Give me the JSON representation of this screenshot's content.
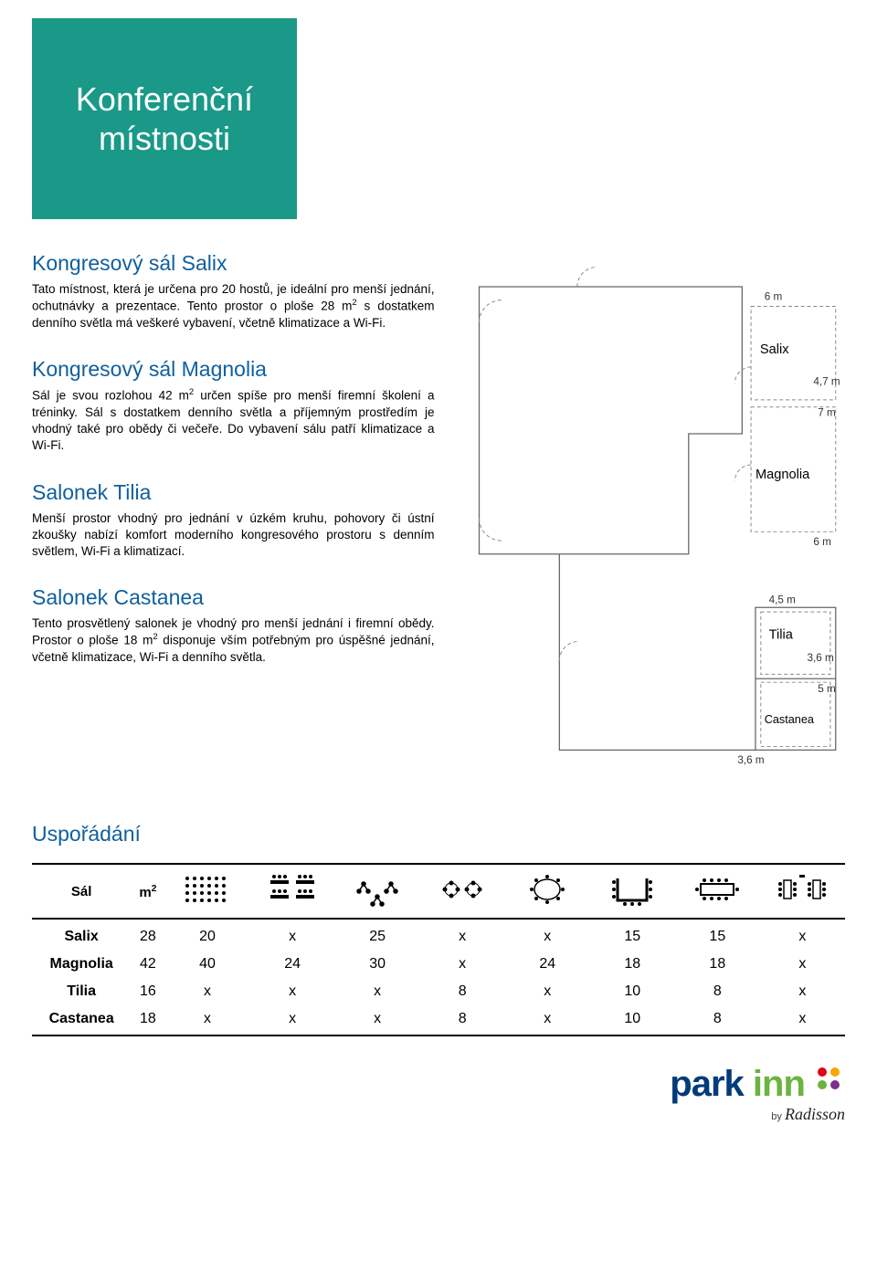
{
  "colors": {
    "title_tile_bg": "#1a9988",
    "accent_blue": "#0f5f9e",
    "logo_park": "#003b7a",
    "logo_inn": "#6cb33f",
    "logo_dot1": "#e2001a",
    "logo_dot2": "#f7a600",
    "logo_dot3": "#6cb33f",
    "logo_dot4": "#7b2e8c",
    "photo_conf_top": "#c9d0c6",
    "photo_conf_bottom": "#c7baa0",
    "photo_bar_top": "#3d7aa8",
    "photo_bar_bottom": "#b8b0a4"
  },
  "header": {
    "title": "Konferenční místnosti"
  },
  "sections": {
    "salix": {
      "title": "Kongresový sál Salix",
      "body": "Tato místnost, která je určena pro 20 hostů, je ideální pro menší jednání, ochutnávky a prezentace. Tento prostor o ploše 28 m² s dostatkem denního světla má veškeré vybavení, včetně klimatizace a Wi-Fi."
    },
    "magnolia": {
      "title": "Kongresový sál Magnolia",
      "body": "Sál je svou rozlohou 42 m² určen spíše pro menší firemní školení a tréninky. Sál s dostatkem denního světla a příjemným prostředím je vhodný také pro obědy či večeře. Do vybavení sálu patří klimatizace a Wi-Fi."
    },
    "tilia": {
      "title": "Salonek Tilia",
      "body": "Menší prostor vhodný pro jednání v úzkém kruhu, pohovory či ústní zkoušky nabízí komfort moderního kongresového prostoru s denním světlem, Wi-Fi a klimatizací."
    },
    "castanea": {
      "title": "Salonek Castanea",
      "body": "Tento prosvětlený salonek je vhodný pro menší jednání i firemní obědy. Prostor o ploše 18 m² disponuje vším potřebným pro úspěšné jednání, včetně klimatizace, Wi-Fi a denního světla."
    }
  },
  "floorplan": {
    "labels": {
      "salix": "Salix",
      "magnolia": "Magnolia",
      "tilia": "Tilia",
      "castanea": "Castanea"
    },
    "dims": {
      "d6m_top": "6 m",
      "d47m": "4,7 m",
      "d7m": "7 m",
      "d6m_mid": "6 m",
      "d45m": "4,5 m",
      "d36m_r": "3,6 m",
      "d5m": "5 m",
      "d36m_b": "3,6 m"
    }
  },
  "arrangement": {
    "title": "Uspořádání",
    "headers": {
      "room": "Sál",
      "area": "m²"
    },
    "layout_icons": [
      "theatre",
      "classroom",
      "cluster",
      "cabaret",
      "boardroom_o",
      "ushape",
      "block",
      "imperial"
    ],
    "rows": [
      {
        "name": "Salix",
        "area": "28",
        "vals": [
          "20",
          "x",
          "25",
          "x",
          "x",
          "15",
          "15",
          "x"
        ]
      },
      {
        "name": "Magnolia",
        "area": "42",
        "vals": [
          "40",
          "24",
          "30",
          "x",
          "24",
          "18",
          "18",
          "x"
        ]
      },
      {
        "name": "Tilia",
        "area": "16",
        "vals": [
          "x",
          "x",
          "x",
          "8",
          "x",
          "10",
          "8",
          "x"
        ]
      },
      {
        "name": "Castanea",
        "area": "18",
        "vals": [
          "x",
          "x",
          "x",
          "8",
          "x",
          "10",
          "8",
          "x"
        ]
      }
    ]
  },
  "logo": {
    "park": "park",
    "inn": "inn",
    "by": "by",
    "brand": "Radisson"
  }
}
